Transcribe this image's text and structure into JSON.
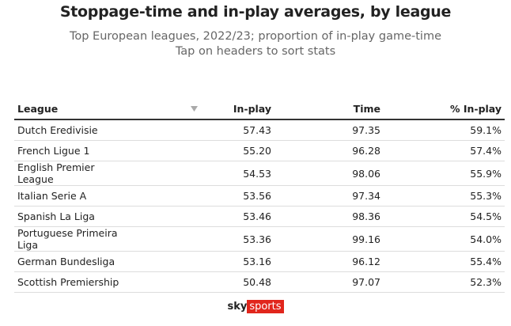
{
  "header": {
    "title": "Stoppage-time and in-play averages, by league",
    "subtitle": [
      "Top European leagues, 2022/23; proportion of in-play game-time",
      "Tap on headers to sort stats"
    ]
  },
  "table": {
    "columns": [
      "League",
      "In-play",
      "Time",
      "% In-play"
    ],
    "rows": [
      [
        "Dutch Eredivisie",
        "57.43",
        "97.35",
        "59.1%"
      ],
      [
        "French Ligue 1",
        "55.20",
        "96.28",
        "57.4%"
      ],
      [
        "English Premier League",
        "54.53",
        "98.06",
        "55.9%"
      ],
      [
        "Italian Serie A",
        "53.56",
        "97.34",
        "55.3%"
      ],
      [
        "Spanish La Liga",
        "53.46",
        "98.36",
        "54.5%"
      ],
      [
        "Portuguese Primeira Liga",
        "53.36",
        "99.16",
        "54.0%"
      ],
      [
        "German Bundesliga",
        "53.16",
        "96.12",
        "55.4%"
      ],
      [
        "Scottish Premiership",
        "50.48",
        "97.07",
        "52.3%"
      ]
    ]
  },
  "footer": {
    "logo": [
      "sky",
      "sports"
    ]
  }
}
